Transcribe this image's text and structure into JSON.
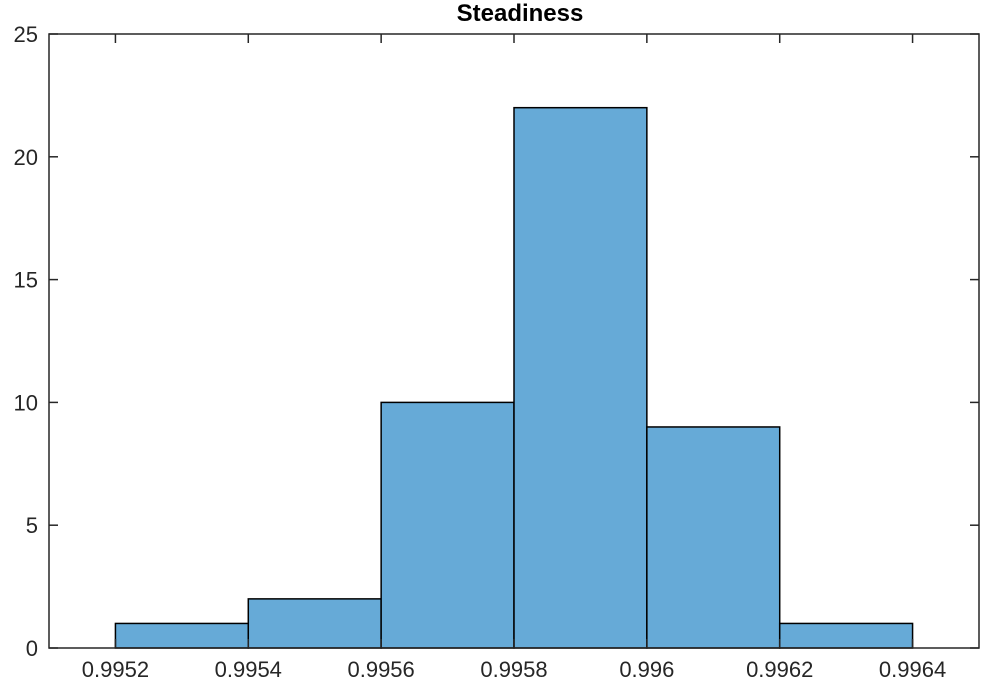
{
  "chart_data": {
    "type": "bar",
    "title": "Steadiness",
    "xlabel": "",
    "ylabel": "",
    "bin_edges": [
      0.9952,
      0.9954,
      0.9956,
      0.9958,
      0.996,
      0.9962,
      0.9964
    ],
    "values": [
      1,
      2,
      10,
      22,
      9,
      1
    ],
    "xlim": [
      0.9951,
      0.9965
    ],
    "ylim": [
      0,
      25
    ],
    "x_ticks": [
      0.9952,
      0.9954,
      0.9956,
      0.9958,
      0.996,
      0.9962,
      0.9964
    ],
    "x_tick_labels": [
      "0.9952",
      "0.9954",
      "0.9956",
      "0.9958",
      "0.996",
      "0.9962",
      "0.9964"
    ],
    "y_ticks": [
      0,
      5,
      10,
      15,
      20,
      25
    ],
    "y_tick_labels": [
      "0",
      "5",
      "10",
      "15",
      "20",
      "25"
    ],
    "grid": false,
    "bar_color": "#66aad7",
    "edge_color": "#000000"
  }
}
